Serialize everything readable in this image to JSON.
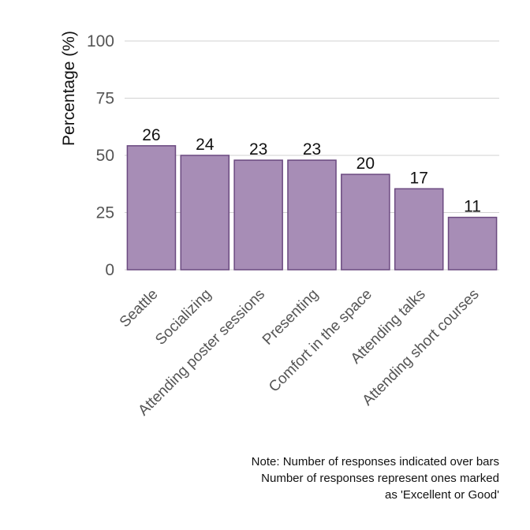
{
  "chart_data": {
    "type": "bar",
    "categories": [
      "Seattle",
      "Socializing",
      "Attending poster sessions",
      "Presenting",
      "Comfort in the space",
      "Attending talks",
      "Attending short courses"
    ],
    "values": [
      54.2,
      50.0,
      47.9,
      47.9,
      41.7,
      35.4,
      22.9
    ],
    "data_labels": [
      "26",
      "24",
      "23",
      "23",
      "20",
      "17",
      "11"
    ],
    "ylabel": "Percentage (%)",
    "ylim": [
      0,
      100
    ],
    "yticks": [
      0,
      25,
      50,
      75,
      100
    ],
    "grid": true,
    "bar_color": "#a78db6",
    "bar_edge_color": "#6b4a80",
    "note": [
      "Note: Number of responses indicated over bars",
      "Number of responses represent ones marked",
      "as 'Excellent or Good'"
    ]
  }
}
